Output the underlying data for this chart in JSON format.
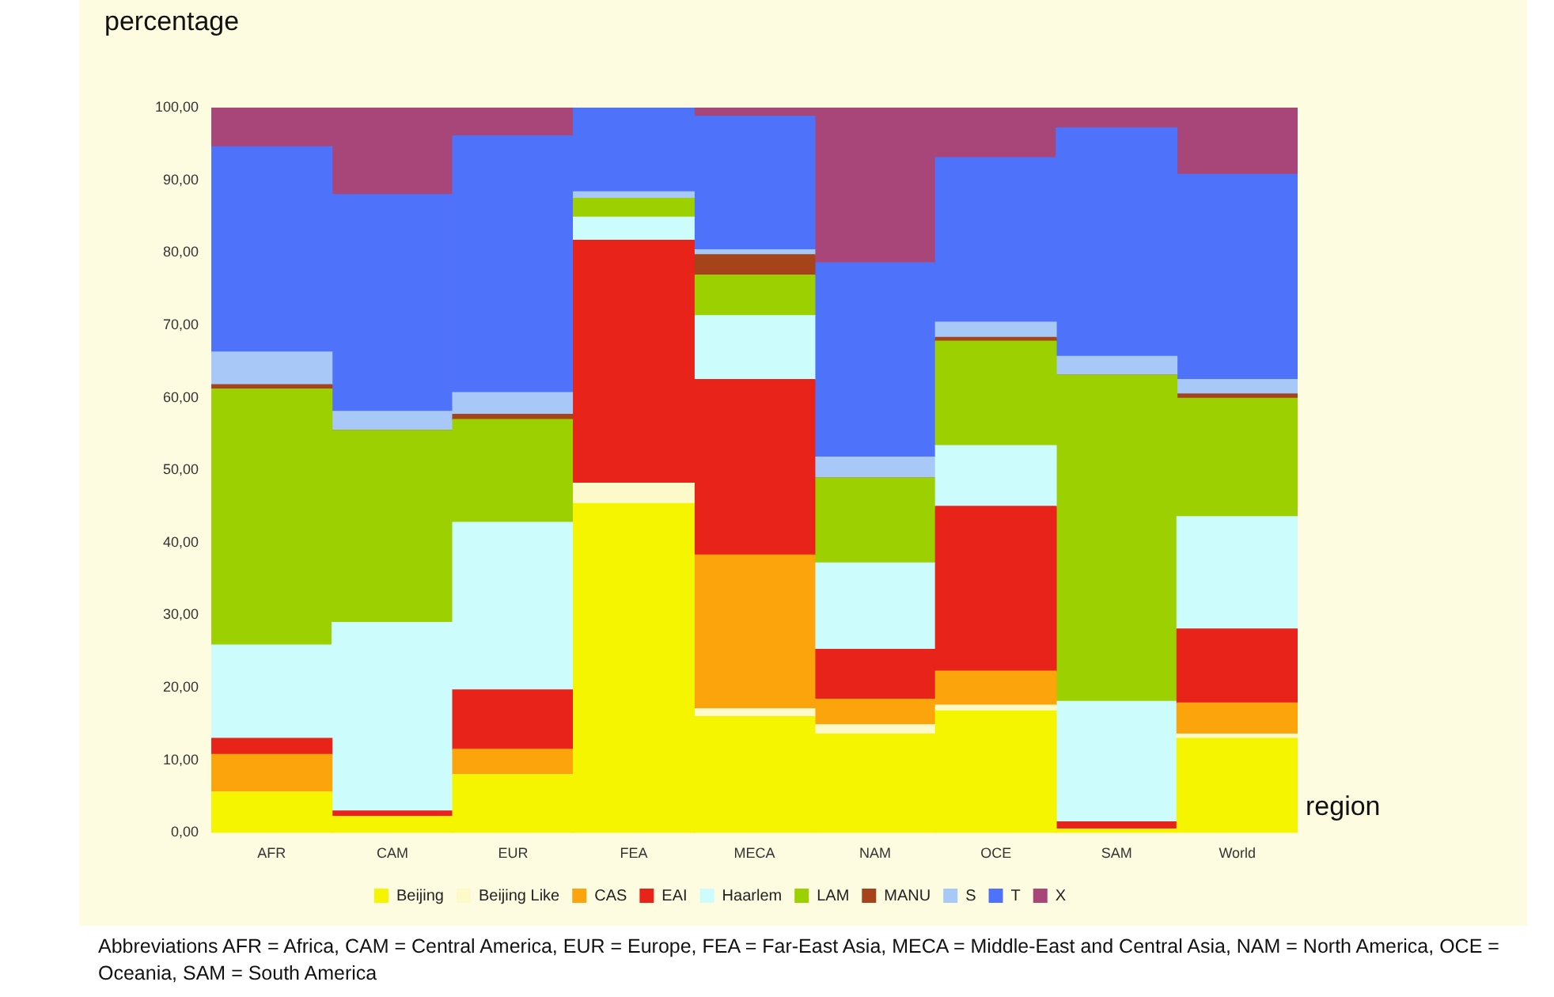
{
  "chart_data": {
    "type": "bar",
    "stacked": true,
    "xlabel": "region",
    "ylabel": "percentage",
    "categories": [
      "AFR",
      "CAM",
      "EUR",
      "FEA",
      "MECA",
      "NAM",
      "OCE",
      "SAM",
      "World"
    ],
    "series": [
      {
        "name": "Beijing",
        "color": "#f5f500",
        "values": [
          5.6,
          2.2,
          8.0,
          45.4,
          16.0,
          13.6,
          16.8,
          0.5,
          13.0
        ]
      },
      {
        "name": "Beijing Like",
        "color": "#fdf9c8",
        "values": [
          0,
          0,
          0,
          2.8,
          1.1,
          1.3,
          0.8,
          0,
          0.6
        ]
      },
      {
        "name": "CAS",
        "color": "#fba40c",
        "values": [
          5.2,
          0,
          3.5,
          0,
          21.2,
          3.5,
          4.7,
          0,
          4.3
        ]
      },
      {
        "name": "EAI",
        "color": "#e8231a",
        "values": [
          2.2,
          0.8,
          8.2,
          33.5,
          24.2,
          6.9,
          22.7,
          1.0,
          10.2
        ]
      },
      {
        "name": "Haarlem",
        "color": "#ccfcfc",
        "values": [
          12.9,
          26.0,
          23.1,
          3.2,
          8.8,
          11.9,
          8.4,
          16.6,
          15.5
        ]
      },
      {
        "name": "LAM",
        "color": "#9cd000",
        "values": [
          35.3,
          26.5,
          14.2,
          2.6,
          5.6,
          11.7,
          14.4,
          45.0,
          16.3
        ]
      },
      {
        "name": "MANU",
        "color": "#a5441a",
        "values": [
          0.6,
          0,
          0.7,
          0,
          2.8,
          0,
          0.5,
          0,
          0.6
        ]
      },
      {
        "name": "S",
        "color": "#a8c8f8",
        "values": [
          4.5,
          2.6,
          3.0,
          0.9,
          0.7,
          2.9,
          2.1,
          2.6,
          2.0
        ]
      },
      {
        "name": "T",
        "color": "#4f72fa",
        "values": [
          28.3,
          29.9,
          35.4,
          11.6,
          18.4,
          26.8,
          22.7,
          31.5,
          28.3
        ]
      },
      {
        "name": "X",
        "color": "#a8467a",
        "values": [
          5.4,
          12.0,
          3.9,
          0,
          1.2,
          21.4,
          6.9,
          2.8,
          9.2
        ]
      }
    ],
    "ylim": [
      0,
      100
    ],
    "yticks": [
      {
        "value": 0,
        "label": "0,00"
      },
      {
        "value": 10,
        "label": "10,00"
      },
      {
        "value": 20,
        "label": "20,00"
      },
      {
        "value": 30,
        "label": "30,00"
      },
      {
        "value": 40,
        "label": "40,00"
      },
      {
        "value": 50,
        "label": "50,00"
      },
      {
        "value": 60,
        "label": "60,00"
      },
      {
        "value": 70,
        "label": "70,00"
      },
      {
        "value": 80,
        "label": "80,00"
      },
      {
        "value": 90,
        "label": "90,00"
      },
      {
        "value": 100,
        "label": "100,00"
      }
    ],
    "grid": false,
    "legend": "bottom",
    "annotations": [
      "Abbreviations AFR = Africa, CAM = Central America, EUR = Europe, FEA = Far-East Asia, MECA = Middle-East and Central Asia, NAM = North America, OCE = Oceania, SAM = South America"
    ]
  }
}
